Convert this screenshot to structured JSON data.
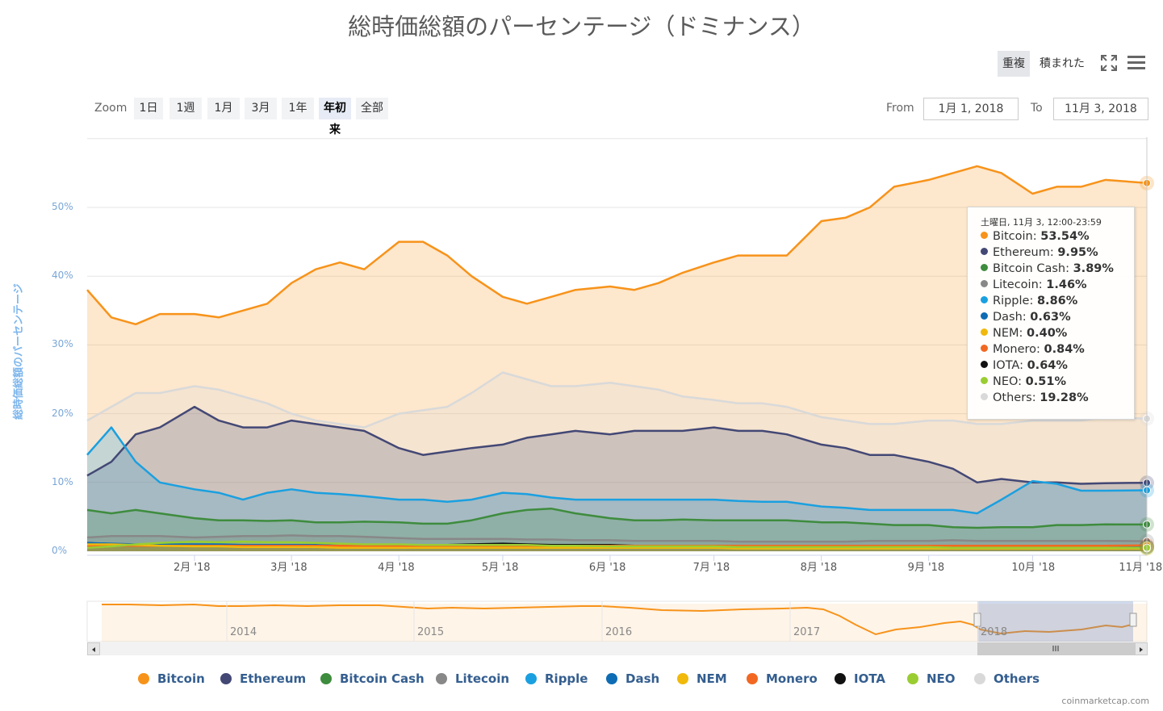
{
  "title": "総時価総額のパーセンテージ（ドミナンス）",
  "view_buttons": {
    "overlap": "重複",
    "stacked": "積まれた"
  },
  "icons": {
    "fullscreen": "fullscreen-icon",
    "menu": "hamburger-menu-icon"
  },
  "zoom": {
    "label": "Zoom",
    "buttons": [
      "1日",
      "1週",
      "1月",
      "3月",
      "1年",
      "年初来",
      "全部"
    ],
    "active": "年初来"
  },
  "range": {
    "from_label": "From",
    "from_value": "1月 1, 2018",
    "to_label": "To",
    "to_value": "11月 3, 2018"
  },
  "navigator": {
    "years": [
      "2014",
      "2015",
      "2016",
      "2017",
      "2018"
    ]
  },
  "tooltip": {
    "header": "土曜日, 11月 3, 12:00-23:59",
    "rows": [
      {
        "name": "Bitcoin",
        "value": "53.54%"
      },
      {
        "name": "Ethereum",
        "value": "9.95%"
      },
      {
        "name": "Bitcoin Cash",
        "value": "3.89%"
      },
      {
        "name": "Litecoin",
        "value": "1.46%"
      },
      {
        "name": "Ripple",
        "value": "8.86%"
      },
      {
        "name": "Dash",
        "value": "0.63%"
      },
      {
        "name": "NEM",
        "value": "0.40%"
      },
      {
        "name": "Monero",
        "value": "0.84%"
      },
      {
        "name": "IOTA",
        "value": "0.64%"
      },
      {
        "name": "NEO",
        "value": "0.51%"
      },
      {
        "name": "Others",
        "value": "19.28%"
      }
    ]
  },
  "credits": "coinmarketcap.com",
  "chart_data": {
    "type": "area",
    "title": "総時価総額のパーセンテージ（ドミナンス）",
    "ylabel": "総時価総額のパーセンテージ",
    "ylim": [
      0,
      60
    ],
    "yticks": [
      "0%",
      "10%",
      "20%",
      "30%",
      "40%",
      "50%"
    ],
    "x_tick_labels": [
      "2月 '18",
      "3月 '18",
      "4月 '18",
      "5月 '18",
      "6月 '18",
      "7月 '18",
      "8月 '18",
      "9月 '18",
      "10月 '18",
      "11月 '18"
    ],
    "x": [
      "2018-01-01",
      "2018-01-08",
      "2018-01-15",
      "2018-01-22",
      "2018-02-01",
      "2018-02-08",
      "2018-02-15",
      "2018-02-22",
      "2018-03-01",
      "2018-03-08",
      "2018-03-15",
      "2018-03-22",
      "2018-04-01",
      "2018-04-08",
      "2018-04-15",
      "2018-04-22",
      "2018-05-01",
      "2018-05-08",
      "2018-05-15",
      "2018-05-22",
      "2018-06-01",
      "2018-06-08",
      "2018-06-15",
      "2018-06-22",
      "2018-07-01",
      "2018-07-08",
      "2018-07-15",
      "2018-07-22",
      "2018-08-01",
      "2018-08-08",
      "2018-08-15",
      "2018-08-22",
      "2018-09-01",
      "2018-09-08",
      "2018-09-15",
      "2018-09-22",
      "2018-10-01",
      "2018-10-08",
      "2018-10-15",
      "2018-10-22",
      "2018-11-03"
    ],
    "grid": true,
    "legend_position": "bottom",
    "series": [
      {
        "name": "Bitcoin",
        "color": "#f7931a",
        "values": [
          38,
          34,
          33,
          34.5,
          34.5,
          34,
          35,
          36,
          39,
          41,
          42,
          41,
          45,
          45,
          43,
          40,
          37,
          36,
          37,
          38,
          38.5,
          38,
          39,
          40.5,
          42,
          43,
          43,
          43,
          48,
          48.5,
          50,
          53,
          54,
          55,
          56,
          55,
          52,
          53,
          53,
          54,
          53.54
        ]
      },
      {
        "name": "Ethereum",
        "color": "#434875",
        "values": [
          11,
          13,
          17,
          18,
          21,
          19,
          18,
          18,
          19,
          18.5,
          18,
          17.5,
          15,
          14,
          14.5,
          15,
          15.5,
          16.5,
          17,
          17.5,
          17,
          17.5,
          17.5,
          17.5,
          18,
          17.5,
          17.5,
          17,
          15.5,
          15,
          14,
          14,
          13,
          12,
          10,
          10.5,
          10,
          10,
          9.8,
          9.9,
          9.95
        ]
      },
      {
        "name": "Bitcoin Cash",
        "color": "#3e8c3e",
        "values": [
          6,
          5.5,
          6,
          5.5,
          4.8,
          4.5,
          4.5,
          4.4,
          4.5,
          4.2,
          4.2,
          4.3,
          4.2,
          4,
          4,
          4.5,
          5.5,
          6,
          6.2,
          5.5,
          4.8,
          4.5,
          4.5,
          4.6,
          4.5,
          4.5,
          4.5,
          4.5,
          4.2,
          4.2,
          4,
          3.8,
          3.8,
          3.5,
          3.4,
          3.5,
          3.5,
          3.8,
          3.8,
          3.9,
          3.89
        ]
      },
      {
        "name": "Litecoin",
        "color": "#888888",
        "values": [
          2,
          2.2,
          2.2,
          2.2,
          2,
          2.1,
          2.2,
          2.2,
          2.3,
          2.2,
          2.2,
          2.1,
          1.9,
          1.8,
          1.8,
          1.8,
          1.8,
          1.7,
          1.7,
          1.6,
          1.6,
          1.5,
          1.5,
          1.5,
          1.5,
          1.4,
          1.4,
          1.4,
          1.4,
          1.4,
          1.5,
          1.5,
          1.5,
          1.6,
          1.5,
          1.5,
          1.5,
          1.5,
          1.5,
          1.5,
          1.46
        ]
      },
      {
        "name": "Ripple",
        "color": "#1aa0e0",
        "values": [
          14,
          18,
          13,
          10,
          9,
          8.5,
          7.5,
          8.5,
          9,
          8.5,
          8.3,
          8,
          7.5,
          7.5,
          7.2,
          7.5,
          8.5,
          8.3,
          7.8,
          7.5,
          7.5,
          7.5,
          7.5,
          7.5,
          7.5,
          7.3,
          7.2,
          7.2,
          6.5,
          6.3,
          6,
          6,
          6,
          6,
          5.5,
          7.5,
          10.2,
          9.8,
          8.8,
          8.8,
          8.86
        ]
      },
      {
        "name": "Dash",
        "color": "#0e6cb4",
        "values": [
          1.2,
          1.1,
          1.0,
          1.0,
          1.0,
          1.0,
          0.9,
          0.9,
          0.9,
          0.9,
          0.8,
          0.8,
          0.8,
          0.8,
          0.8,
          0.8,
          0.8,
          0.8,
          0.8,
          0.8,
          0.7,
          0.7,
          0.7,
          0.7,
          0.7,
          0.7,
          0.7,
          0.7,
          0.7,
          0.7,
          0.7,
          0.7,
          0.7,
          0.7,
          0.7,
          0.6,
          0.6,
          0.6,
          0.6,
          0.6,
          0.63
        ]
      },
      {
        "name": "NEM",
        "color": "#f0b90b",
        "values": [
          1.0,
          1.0,
          0.9,
          0.8,
          0.7,
          0.7,
          0.6,
          0.6,
          0.6,
          0.6,
          0.5,
          0.5,
          0.5,
          0.5,
          0.5,
          0.5,
          0.5,
          0.5,
          0.5,
          0.5,
          0.5,
          0.5,
          0.5,
          0.5,
          0.5,
          0.4,
          0.4,
          0.4,
          0.4,
          0.4,
          0.4,
          0.4,
          0.4,
          0.4,
          0.4,
          0.4,
          0.4,
          0.4,
          0.4,
          0.4,
          0.4
        ]
      },
      {
        "name": "Monero",
        "color": "#f26822",
        "values": [
          0.8,
          0.8,
          0.8,
          0.8,
          0.8,
          0.8,
          0.8,
          0.8,
          0.8,
          0.8,
          0.8,
          0.8,
          0.8,
          0.8,
          0.8,
          0.8,
          0.8,
          0.8,
          0.8,
          0.8,
          0.8,
          0.8,
          0.8,
          0.8,
          0.8,
          0.8,
          0.8,
          0.8,
          0.8,
          0.8,
          0.8,
          0.8,
          0.8,
          0.8,
          0.8,
          0.8,
          0.8,
          0.8,
          0.8,
          0.8,
          0.84
        ]
      },
      {
        "name": "IOTA",
        "color": "#111111",
        "values": [
          1.2,
          1.0,
          0.9,
          0.8,
          0.8,
          0.8,
          0.7,
          0.7,
          0.7,
          0.7,
          0.7,
          0.7,
          0.8,
          0.8,
          0.9,
          1.0,
          1.1,
          1.0,
          0.9,
          0.9,
          0.9,
          0.8,
          0.8,
          0.8,
          0.8,
          0.8,
          0.7,
          0.7,
          0.7,
          0.7,
          0.7,
          0.7,
          0.7,
          0.7,
          0.7,
          0.7,
          0.6,
          0.6,
          0.6,
          0.6,
          0.64
        ]
      },
      {
        "name": "NEO",
        "color": "#9acd32",
        "values": [
          0.5,
          0.7,
          1.0,
          1.2,
          1.4,
          1.3,
          1.4,
          1.3,
          1.3,
          1.2,
          1.1,
          1.0,
          1.0,
          0.9,
          0.9,
          0.9,
          0.9,
          0.9,
          0.8,
          0.8,
          0.7,
          0.7,
          0.7,
          0.7,
          0.7,
          0.6,
          0.6,
          0.6,
          0.6,
          0.6,
          0.6,
          0.6,
          0.6,
          0.5,
          0.5,
          0.5,
          0.5,
          0.5,
          0.5,
          0.5,
          0.51
        ]
      },
      {
        "name": "Others",
        "color": "#d9d9d9",
        "values": [
          19,
          21,
          23,
          23,
          24,
          23.5,
          22.5,
          21.5,
          20,
          19,
          18.5,
          18,
          20,
          20.5,
          21,
          23,
          26,
          25,
          24,
          24,
          24.5,
          24,
          23.5,
          22.5,
          22,
          21.5,
          21.5,
          21,
          19.5,
          19,
          18.5,
          18.5,
          19,
          19,
          18.5,
          18.5,
          19,
          19,
          19,
          19.5,
          19.28
        ]
      }
    ]
  }
}
